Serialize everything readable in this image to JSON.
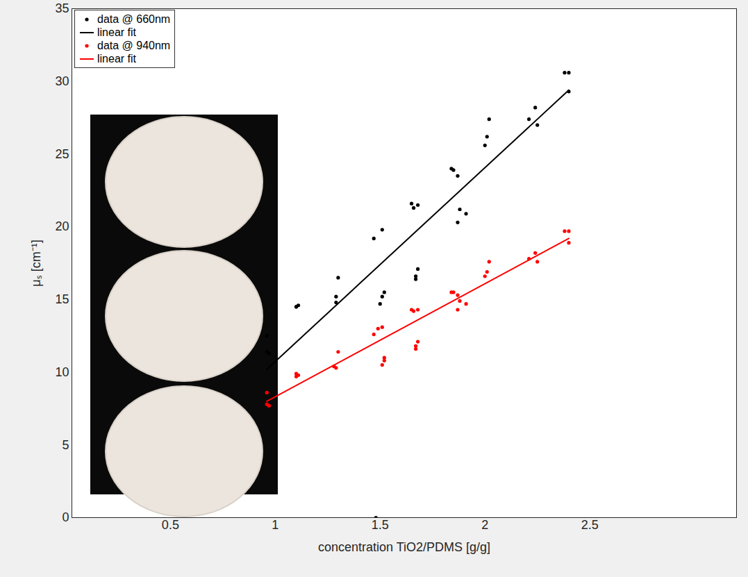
{
  "chart_data": {
    "type": "scatter",
    "x_label": "concentration TiO2/PDMS [g/g]",
    "y_label": "μₛ [cm⁻¹]",
    "xlim": [
      0.03,
      3.2
    ],
    "xticks": [
      0.5,
      1,
      1.5,
      2,
      2.5
    ],
    "ylim": [
      0,
      35
    ],
    "yticks": [
      0,
      5,
      10,
      15,
      20,
      25,
      30,
      35
    ],
    "grid": false,
    "legend": "top-left",
    "series": [
      {
        "name": "data @ 660nm",
        "type": "scatter",
        "marker": "dot",
        "color": "#000000",
        "x": [
          0.96,
          0.96,
          0.97,
          1.1,
          1.1,
          1.11,
          1.29,
          1.29,
          1.3,
          1.47,
          1.48,
          1.51,
          1.5,
          1.51,
          1.52,
          1.65,
          1.66,
          1.68,
          1.68,
          1.67,
          1.67,
          1.84,
          1.85,
          1.87,
          1.87,
          1.88,
          1.91,
          2.0,
          2.01,
          2.02,
          2.21,
          2.24,
          2.25,
          2.38,
          2.4,
          2.4
        ],
        "values": [
          12.5,
          11.4,
          11.3,
          14.5,
          14.5,
          14.6,
          14.8,
          15.2,
          16.5,
          19.2,
          0,
          19.8,
          14.7,
          15.2,
          15.5,
          21.6,
          21.3,
          21.5,
          17.1,
          16.6,
          16.4,
          24.0,
          23.9,
          23.5,
          20.3,
          21.2,
          20.9,
          25.6,
          26.2,
          27.4,
          27.4,
          28.2,
          27.0,
          30.6,
          30.6,
          29.3
        ]
      },
      {
        "name": "linear fit",
        "type": "line",
        "line_style": "solid",
        "color": "#000000",
        "x": [
          0.96,
          2.4
        ],
        "values": [
          10.2,
          29.4
        ]
      },
      {
        "name": "data @ 940nm",
        "type": "scatter",
        "marker": "dot",
        "color": "#ff0000",
        "x": [
          0.96,
          0.96,
          0.97,
          0.97,
          1.1,
          1.1,
          1.11,
          1.28,
          1.29,
          1.3,
          1.47,
          1.49,
          1.51,
          1.51,
          1.52,
          1.52,
          1.65,
          1.66,
          1.68,
          1.68,
          1.67,
          1.67,
          1.84,
          1.85,
          1.87,
          1.87,
          1.88,
          1.91,
          2.0,
          2.01,
          2.02,
          2.21,
          2.24,
          2.25,
          2.38,
          2.4,
          2.4
        ],
        "values": [
          8.6,
          7.8,
          7.7,
          7.7,
          9.9,
          9.7,
          9.8,
          10.4,
          10.3,
          11.4,
          12.6,
          13.0,
          13.1,
          10.5,
          10.8,
          11.0,
          14.3,
          14.2,
          14.3,
          12.1,
          11.8,
          11.6,
          15.5,
          15.5,
          14.3,
          15.3,
          14.9,
          14.7,
          16.6,
          16.9,
          17.6,
          17.8,
          18.2,
          17.6,
          19.7,
          19.7,
          18.9
        ]
      },
      {
        "name": "linear fit",
        "type": "line",
        "line_style": "solid",
        "color": "#ff0000",
        "x": [
          0.96,
          2.4
        ],
        "values": [
          8.0,
          19.2
        ]
      }
    ]
  }
}
